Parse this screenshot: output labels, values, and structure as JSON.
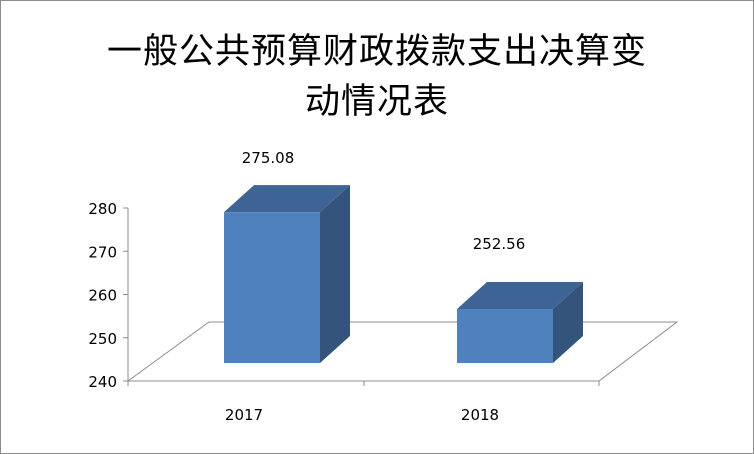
{
  "chart_data": {
    "type": "bar",
    "title_lines": [
      "一般公共预算财政拨款支出决算变",
      "动情况表"
    ],
    "categories": [
      "2017",
      "2018"
    ],
    "values": [
      275.08,
      252.56
    ],
    "data_labels": [
      "275.08",
      "252.56"
    ],
    "ylim": [
      240,
      280
    ],
    "yticks": [
      "240",
      "250",
      "260",
      "270",
      "280"
    ],
    "style": "3d-column",
    "grid": false,
    "legend": "none",
    "colors": {
      "front": "#4f81bd",
      "side": "#34547c",
      "top": "#3d6494",
      "floor": "#8c8c8c"
    }
  }
}
